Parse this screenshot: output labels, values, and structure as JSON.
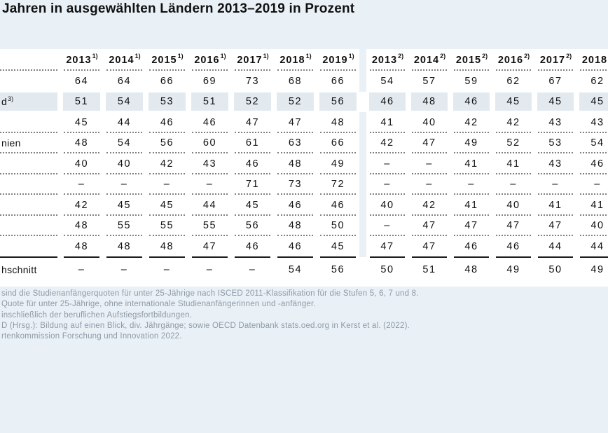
{
  "title": "Jahren in ausgewählten Ländern 2013–2019 in Prozent",
  "colors": {
    "page_background": "#e9f1f7",
    "table_background": "#ffffff",
    "row_highlight": "#e3eaef",
    "footnote_text": "#8d9aa6",
    "text": "#111111"
  },
  "table": {
    "column_groups": [
      {
        "years": [
          "2013",
          "2014",
          "2015",
          "2016",
          "2017",
          "2018",
          "2019"
        ],
        "superscript": "1)"
      },
      {
        "years": [
          "2013",
          "2014",
          "2015",
          "2016",
          "2017",
          "2018"
        ],
        "superscript": "2)"
      }
    ],
    "rows": [
      {
        "label": "",
        "label_sup": "",
        "highlight": false,
        "border_below": "none",
        "g1": [
          "64",
          "64",
          "66",
          "69",
          "73",
          "68",
          "66"
        ],
        "g2": [
          "54",
          "57",
          "59",
          "62",
          "67",
          "62"
        ]
      },
      {
        "label": "d",
        "label_sup": "3)",
        "highlight": true,
        "border_below": "none",
        "g1": [
          "51",
          "54",
          "53",
          "51",
          "52",
          "52",
          "56"
        ],
        "g2": [
          "46",
          "48",
          "46",
          "45",
          "45",
          "45"
        ]
      },
      {
        "label": "",
        "label_sup": "",
        "highlight": false,
        "border_below": "dotted",
        "g1": [
          "45",
          "44",
          "46",
          "46",
          "47",
          "47",
          "48"
        ],
        "g2": [
          "41",
          "40",
          "42",
          "42",
          "43",
          "43"
        ]
      },
      {
        "label": "nien",
        "label_sup": "",
        "highlight": false,
        "border_below": "dotted",
        "g1": [
          "48",
          "54",
          "56",
          "60",
          "61",
          "63",
          "66"
        ],
        "g2": [
          "42",
          "47",
          "49",
          "52",
          "53",
          "54"
        ]
      },
      {
        "label": "",
        "label_sup": "",
        "highlight": false,
        "border_below": "dotted",
        "g1": [
          "40",
          "40",
          "42",
          "43",
          "46",
          "48",
          "49"
        ],
        "g2": [
          "–",
          "–",
          "41",
          "41",
          "43",
          "46"
        ]
      },
      {
        "label": "",
        "label_sup": "",
        "highlight": false,
        "border_below": "dotted",
        "g1": [
          "–",
          "–",
          "–",
          "–",
          "71",
          "73",
          "72"
        ],
        "g2": [
          "–",
          "–",
          "–",
          "–",
          "–",
          "–"
        ]
      },
      {
        "label": "",
        "label_sup": "",
        "highlight": false,
        "border_below": "dotted",
        "g1": [
          "42",
          "45",
          "45",
          "44",
          "45",
          "46",
          "46"
        ],
        "g2": [
          "40",
          "42",
          "41",
          "40",
          "41",
          "41"
        ]
      },
      {
        "label": "",
        "label_sup": "",
        "highlight": false,
        "border_below": "dotted",
        "g1": [
          "48",
          "55",
          "55",
          "55",
          "56",
          "48",
          "50"
        ],
        "g2": [
          "–",
          "47",
          "47",
          "47",
          "47",
          "40"
        ]
      },
      {
        "label": "",
        "label_sup": "",
        "highlight": false,
        "border_below": "solid",
        "g1": [
          "48",
          "48",
          "48",
          "47",
          "46",
          "46",
          "45"
        ],
        "g2": [
          "47",
          "47",
          "46",
          "46",
          "44",
          "44"
        ]
      },
      {
        "label": "hschnitt",
        "label_sup": "",
        "highlight": false,
        "border_below": "none",
        "average_row": true,
        "g1": [
          "–",
          "–",
          "–",
          "–",
          "–",
          "54",
          "56"
        ],
        "g2": [
          "50",
          "51",
          "48",
          "49",
          "50",
          "49"
        ]
      }
    ]
  },
  "footnotes": [
    "sind die Studienanfängerquoten für unter 25-Jährige nach ISCED 2011-Klassifikation für die Stufen 5, 6, 7 und 8.",
    "Quote für unter 25-Jährige, ohne internationale Studienanfängerinnen und -anfänger.",
    "inschließlich der beruflichen Aufstiegsfortbildungen.",
    "D (Hrsg.): Bildung auf einen Blick, div. Jährgänge; sowie OECD Datenbank stats.oed.org in Kerst et al. (2022).",
    "rtenkommission Forschung und Innovation 2022."
  ]
}
